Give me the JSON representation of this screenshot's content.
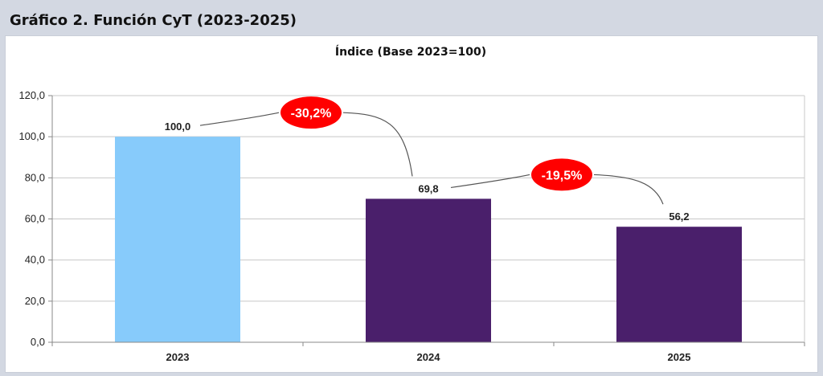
{
  "header": {
    "title": "Gráfico 2. Función CyT (2023-2025)"
  },
  "colors": {
    "bar_2023": "#87cbfb",
    "bar_other": "#4a1f6b",
    "callout": "#ff0000",
    "grid": "#c8c8c8"
  },
  "chart_data": {
    "type": "bar",
    "title": "Índice (Base 2023=100)",
    "categories": [
      "2023",
      "2024",
      "2025"
    ],
    "values": [
      100.0,
      69.8,
      56.2
    ],
    "value_labels": [
      "100,0",
      "69,8",
      "56,2"
    ],
    "ylim": [
      0,
      120
    ],
    "yticks": [
      "0,0",
      "20,0",
      "40,0",
      "60,0",
      "80,0",
      "100,0",
      "120,0"
    ],
    "grid": true,
    "annotations": [
      {
        "text": "-30,2%",
        "from": "2023",
        "to": "2024"
      },
      {
        "text": "-19,5%",
        "from": "2024",
        "to": "2025"
      }
    ]
  }
}
